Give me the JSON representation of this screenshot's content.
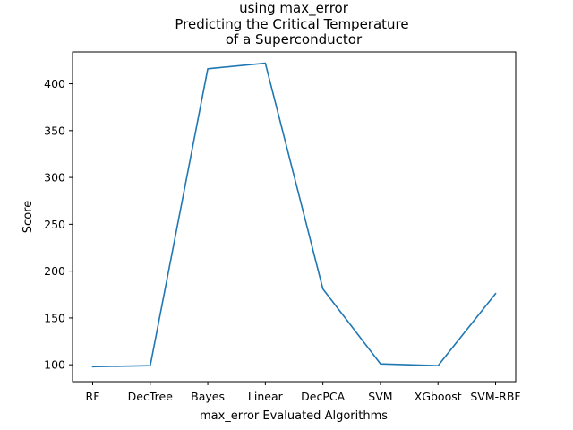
{
  "chart_data": {
    "type": "line",
    "title_lines": [
      "using max_error",
      "Predicting the Critical Temperature",
      "of a Superconductor"
    ],
    "xlabel": "max_error Evaluated Algorithms",
    "ylabel": "Score",
    "categories": [
      "RF",
      "DecTree",
      "Bayes",
      "Linear",
      "DecPCA",
      "SVM",
      "XGboost",
      "SVM-RBF"
    ],
    "series": [
      {
        "values": [
          98,
          99,
          416,
          422,
          181,
          101,
          99,
          176
        ],
        "color": "#1f77b4"
      }
    ],
    "yticks": [
      100,
      150,
      200,
      250,
      300,
      350,
      400
    ],
    "ylim": [
      82,
      434
    ],
    "grid": false
  }
}
